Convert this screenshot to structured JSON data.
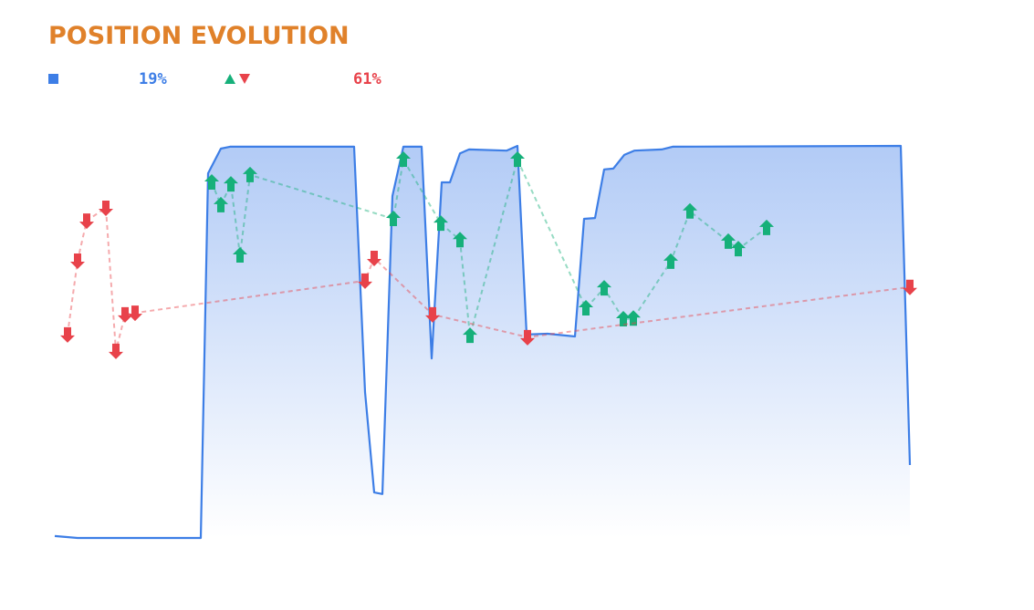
{
  "chart_data": {
    "type": "area",
    "title": "POSITION EVOLUTION",
    "position_stat": "19%",
    "trades_stat": "61%",
    "xlim": [
      0,
      940
    ],
    "ylim": [
      0,
      100
    ],
    "x": [
      0,
      25,
      160,
      168,
      182,
      192,
      328,
      340,
      350,
      359,
      370,
      382,
      402,
      413,
      424,
      433,
      444,
      454,
      495,
      507,
      517,
      540,
      570,
      580,
      592,
      602,
      612,
      624,
      635,
      665,
      677,
      927,
      937
    ],
    "values": [
      0.5,
      0,
      0,
      93,
      99.3,
      99.8,
      99.8,
      37.2,
      11.6,
      11.2,
      87.2,
      99.8,
      99.8,
      45.8,
      90.7,
      90.7,
      98.1,
      99.1,
      98.8,
      100,
      51.9,
      52.1,
      51.4,
      81.4,
      81.6,
      94,
      94.2,
      97.7,
      98.8,
      99.1,
      99.8,
      100,
      18.6
    ],
    "color": "#3d7ee6",
    "trades": [
      {
        "color": "#16b07a",
        "direction": "up",
        "x": [
          172,
          182,
          193,
          203,
          214,
          371,
          382,
          423,
          444,
          455,
          507,
          582,
          602,
          623,
          634,
          675,
          696,
          738,
          749,
          780
        ],
        "values": [
          90.7,
          84.9,
          90.2,
          72.1,
          92.6,
          81.4,
          96.5,
          80.2,
          76,
          51.6,
          96.5,
          58.6,
          63.7,
          55.8,
          56,
          70.5,
          83.3,
          75.6,
          73.7,
          79.1
        ]
      },
      {
        "color": "#e8424a",
        "direction": "down",
        "x": [
          14,
          25,
          35,
          56,
          67,
          77,
          88,
          340,
          350,
          414,
          518,
          937
        ],
        "values": [
          51.9,
          70.7,
          80.9,
          84.2,
          47.7,
          57,
          57.4,
          65.6,
          71.4,
          57,
          51.2,
          64
        ]
      }
    ]
  }
}
